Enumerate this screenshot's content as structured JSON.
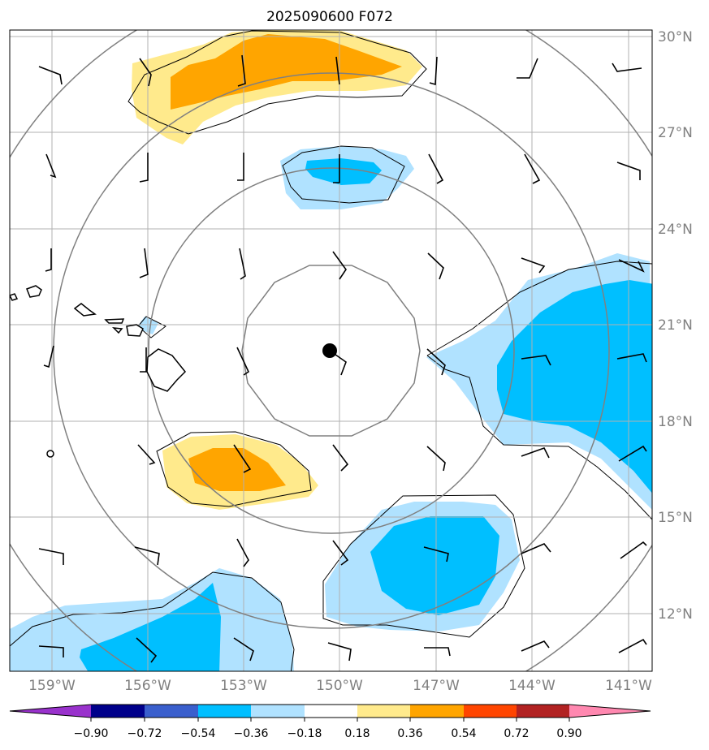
{
  "title": "2025090600 F072",
  "lat_labels": [
    "30°N",
    "27°N",
    "24°N",
    "21°N",
    "18°N",
    "15°N",
    "12°N"
  ],
  "lon_labels": [
    "159°W",
    "156°W",
    "153°W",
    "150°W",
    "147°W",
    "144°W",
    "141°W"
  ],
  "colorbar": {
    "ticks": [
      "−0.90",
      "−0.72",
      "−0.54",
      "−0.36",
      "−0.18",
      "0.18",
      "0.36",
      "0.54",
      "0.72",
      "0.90"
    ],
    "colors": [
      "#9932cc",
      "#00008b",
      "#3a5fcd",
      "#00bfff",
      "#b0e2ff",
      "#ffffff",
      "#ffea8c",
      "#ffa500",
      "#ff4500",
      "#b22222",
      "#ff88b0"
    ]
  },
  "colors": {
    "coast": "#000000",
    "grid": "#b0b0b0",
    "range_rings": "#808080",
    "barbs": "#000000",
    "center": "#000000"
  },
  "chart_data": {
    "type": "map",
    "title": "2025090600 F072",
    "extent": {
      "lon": [
        -160.3,
        -140.3
      ],
      "lat": [
        10.3,
        30.2
      ]
    },
    "center": {
      "lon": -150.3,
      "lat": 20.2
    },
    "lat_ticks": [
      30,
      27,
      24,
      21,
      18,
      15,
      12
    ],
    "lon_ticks": [
      -159,
      -156,
      -153,
      -150,
      -147,
      -144,
      -141
    ],
    "levels": [
      -0.9,
      -0.72,
      -0.54,
      -0.36,
      -0.18,
      0.18,
      0.36,
      0.54,
      0.72,
      0.9
    ]
  }
}
